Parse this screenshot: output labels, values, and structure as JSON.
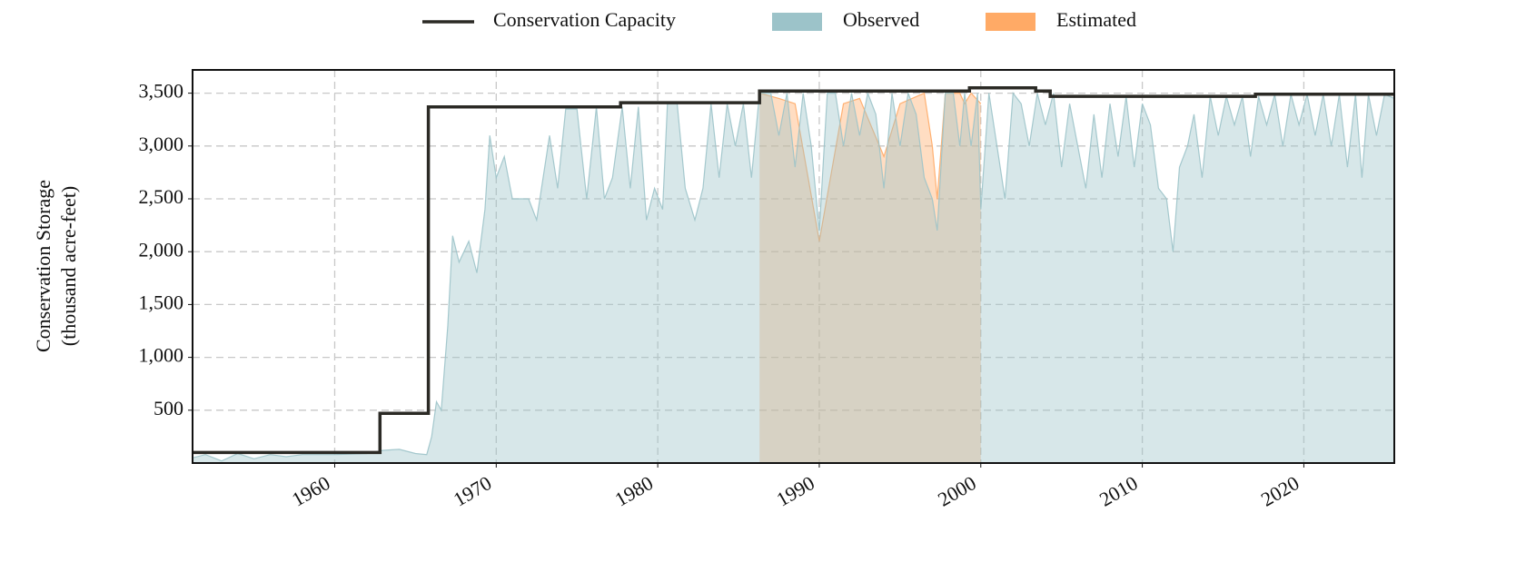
{
  "chart_data": {
    "type": "area",
    "ylabel": [
      "Conservation Storage",
      "(thousand acre-feet)"
    ],
    "xlim": [
      1951.2,
      2025.6
    ],
    "ylim": [
      0,
      3720
    ],
    "xticks": [
      1960,
      1970,
      1980,
      1990,
      2000,
      2010,
      2020
    ],
    "yticks": [
      {
        "value": 500,
        "label": "500"
      },
      {
        "value": 1000,
        "label": "1,000"
      },
      {
        "value": 1500,
        "label": "1,500"
      },
      {
        "value": 2000,
        "label": "2,000"
      },
      {
        "value": 2500,
        "label": "2,500"
      },
      {
        "value": 3000,
        "label": "3,000"
      },
      {
        "value": 3500,
        "label": "3,500"
      }
    ],
    "grid": true,
    "legend": "top",
    "series": [
      {
        "name": "Conservation Capacity",
        "type": "line",
        "color": "#2b2a25",
        "x": [
          1951.2,
          1962.8,
          1962.8,
          1965.8,
          1965.8,
          1977.7,
          1977.7,
          1986.3,
          1986.3,
          1999.3,
          1999.3,
          2003.4,
          2003.4,
          2004.3,
          2004.3,
          2017.0,
          2017.0,
          2025.6
        ],
        "values": [
          100,
          100,
          470,
          470,
          3370,
          3370,
          3410,
          3410,
          3520,
          3520,
          3550,
          3550,
          3520,
          3520,
          3470,
          3470,
          3490,
          3490
        ]
      },
      {
        "name": "Observed",
        "type": "area",
        "color": "#9cc3c9",
        "x": [
          1951.2,
          1952,
          1953,
          1954,
          1955,
          1956,
          1957,
          1958,
          1960,
          1962,
          1963,
          1964,
          1965,
          1965.7,
          1966,
          1966.3,
          1966.6,
          1967,
          1967.3,
          1967.7,
          1968.3,
          1968.8,
          1969.3,
          1969.6,
          1970,
          1970.5,
          1971,
          1972,
          1972.5,
          1973,
          1973.3,
          1973.8,
          1974.3,
          1975,
          1975.6,
          1976.2,
          1976.7,
          1977.2,
          1977.8,
          1978.3,
          1978.8,
          1979.3,
          1979.8,
          1980.3,
          1980.6,
          1981.2,
          1981.7,
          1982.3,
          1982.8,
          1983.3,
          1983.8,
          1984.3,
          1984.8,
          1985.3,
          1985.8,
          1986.3,
          1987,
          1987.5,
          1988,
          1988.5,
          1989,
          1989.5,
          1990,
          1990.5,
          1991,
          1991.5,
          1992,
          1992.5,
          1993,
          1993.5,
          1994,
          1994.5,
          1995,
          1995.5,
          1996,
          1996.5,
          1997,
          1997.3,
          1997.8,
          1998.3,
          1998.7,
          1999,
          1999.4,
          1999.8,
          2000,
          2000.5,
          2001,
          2001.5,
          2002,
          2002.5,
          2003,
          2003.5,
          2004,
          2004.5,
          2005,
          2005.5,
          2006,
          2006.5,
          2007,
          2007.5,
          2008,
          2008.5,
          2009,
          2009.5,
          2010,
          2010.5,
          2011,
          2011.5,
          2011.9,
          2012.3,
          2012.8,
          2013.2,
          2013.7,
          2014.2,
          2014.7,
          2015.2,
          2015.7,
          2016.2,
          2016.7,
          2017.2,
          2017.7,
          2018.2,
          2018.7,
          2019.2,
          2019.7,
          2020.2,
          2020.7,
          2021.2,
          2021.7,
          2022.2,
          2022.7,
          2023.2,
          2023.6,
          2024,
          2024.5,
          2025,
          2025.6
        ],
        "values": [
          50,
          80,
          20,
          90,
          40,
          80,
          60,
          80,
          80,
          90,
          120,
          130,
          90,
          80,
          250,
          580,
          500,
          1300,
          2150,
          1900,
          2100,
          1800,
          2400,
          3100,
          2700,
          2900,
          2500,
          2500,
          2300,
          2800,
          3100,
          2600,
          3350,
          3350,
          2500,
          3370,
          2500,
          2700,
          3370,
          2600,
          3370,
          2300,
          2600,
          2400,
          3400,
          3400,
          2600,
          2300,
          2600,
          3400,
          2700,
          3400,
          3000,
          3400,
          2700,
          3500,
          3500,
          3100,
          3500,
          2800,
          3500,
          3000,
          2200,
          3500,
          3500,
          3000,
          3500,
          3100,
          3500,
          3300,
          2600,
          3500,
          3000,
          3500,
          3300,
          2700,
          2500,
          2200,
          3500,
          3500,
          3000,
          3500,
          3000,
          3500,
          2400,
          3500,
          3000,
          2500,
          3500,
          3400,
          3000,
          3500,
          3200,
          3500,
          2800,
          3400,
          3000,
          2600,
          3300,
          2700,
          3400,
          2900,
          3470,
          2800,
          3400,
          3200,
          2600,
          2500,
          2000,
          2800,
          3000,
          3300,
          2700,
          3470,
          3100,
          3470,
          3200,
          3470,
          2900,
          3470,
          3200,
          3490,
          3000,
          3490,
          3200,
          3490,
          3100,
          3490,
          3000,
          3490,
          2800,
          3490,
          2700,
          3490,
          3100,
          3490,
          3450
        ]
      },
      {
        "name": "Estimated",
        "type": "area",
        "color": "#ffaa66",
        "x": [
          1986.3,
          1987.5,
          1988.5,
          1990,
          1991.5,
          1992.5,
          1994,
          1995,
          1996.5,
          1997,
          1997.3,
          1997.8,
          1998.3,
          1998.7,
          1999,
          1999.4,
          2000
        ],
        "values": [
          3500,
          3450,
          3400,
          2100,
          3400,
          3450,
          2900,
          3400,
          3500,
          3000,
          2500,
          3500,
          3500,
          3500,
          3400,
          3500,
          3400
        ]
      }
    ]
  }
}
